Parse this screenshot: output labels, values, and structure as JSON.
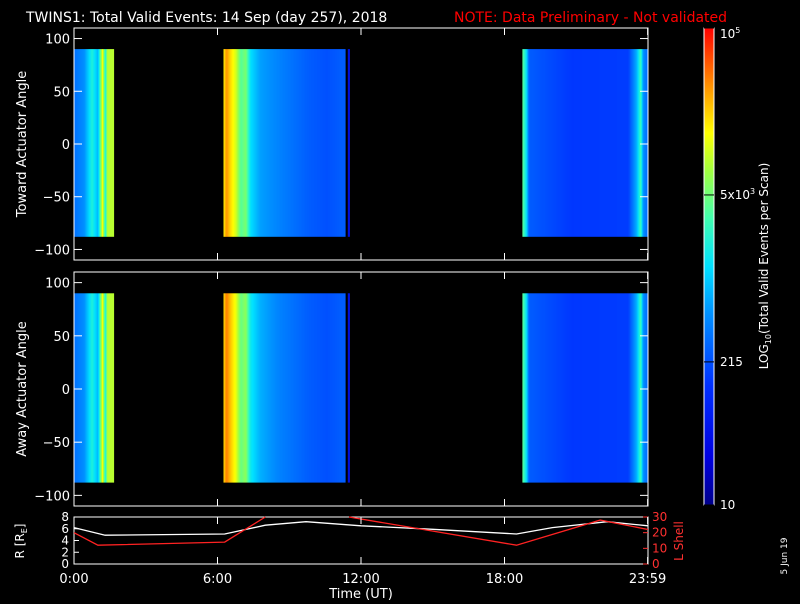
{
  "header": {
    "title": "TWINS1: Total Valid Events: 14 Sep (day 257), 2018",
    "note": "NOTE: Data Preliminary - Not validated",
    "note_color": "#ff0000"
  },
  "side_stamp": "5 Jun 19",
  "chart_data": [
    {
      "type": "heatmap",
      "ylabel": "Toward Actuator Angle",
      "ylim": [
        -110,
        110
      ],
      "yticks": [
        "100",
        "50",
        "0",
        "−50",
        "−100"
      ],
      "xlim_hours": [
        0,
        24
      ],
      "angle_range": [
        -88,
        90
      ],
      "data_blocks": [
        {
          "start": "0:00",
          "end": "1:40",
          "profile": [
            [
              0,
              0.35
            ],
            [
              0.25,
              0.4
            ],
            [
              0.45,
              0.55
            ],
            [
              0.6,
              0.45
            ],
            [
              0.72,
              0.78
            ],
            [
              0.79,
              0.55
            ],
            [
              0.85,
              0.72
            ],
            [
              1.0,
              0.72
            ]
          ]
        },
        {
          "start": "6:15",
          "end": "11:20",
          "profile": [
            [
              0,
              0.8
            ],
            [
              0.02,
              0.88
            ],
            [
              0.05,
              0.82
            ],
            [
              0.1,
              0.74
            ],
            [
              0.14,
              0.62
            ],
            [
              0.18,
              0.66
            ],
            [
              0.22,
              0.5
            ],
            [
              0.3,
              0.42
            ],
            [
              0.45,
              0.38
            ],
            [
              0.7,
              0.32
            ],
            [
              0.85,
              0.3
            ],
            [
              0.97,
              0.32
            ],
            [
              1.0,
              0.32
            ]
          ]
        },
        {
          "start": "11:27",
          "end": "11:33",
          "profile": [
            [
              0,
              0.15
            ],
            [
              1.0,
              0.15
            ]
          ]
        },
        {
          "start": "18:45",
          "end": "23:59",
          "profile": [
            [
              0,
              0.62
            ],
            [
              0.03,
              0.5
            ],
            [
              0.05,
              0.32
            ],
            [
              0.4,
              0.26
            ],
            [
              0.85,
              0.27
            ],
            [
              0.92,
              0.45
            ],
            [
              0.95,
              0.6
            ],
            [
              0.97,
              0.4
            ],
            [
              1.0,
              0.35
            ]
          ]
        }
      ]
    },
    {
      "type": "heatmap",
      "ylabel": "Away Actuator Angle",
      "ylim": [
        -110,
        110
      ],
      "yticks": [
        "100",
        "50",
        "0",
        "−50",
        "−100"
      ],
      "xlim_hours": [
        0,
        24
      ],
      "angle_range": [
        -88,
        90
      ],
      "data_blocks": [
        {
          "start": "0:00",
          "end": "1:40",
          "profile": [
            [
              0,
              0.35
            ],
            [
              0.25,
              0.4
            ],
            [
              0.45,
              0.55
            ],
            [
              0.6,
              0.45
            ],
            [
              0.72,
              0.78
            ],
            [
              0.79,
              0.55
            ],
            [
              0.85,
              0.72
            ],
            [
              1.0,
              0.72
            ]
          ]
        },
        {
          "start": "6:15",
          "end": "11:20",
          "profile": [
            [
              0,
              0.82
            ],
            [
              0.02,
              0.9
            ],
            [
              0.05,
              0.84
            ],
            [
              0.1,
              0.76
            ],
            [
              0.14,
              0.64
            ],
            [
              0.18,
              0.68
            ],
            [
              0.22,
              0.52
            ],
            [
              0.3,
              0.44
            ],
            [
              0.45,
              0.38
            ],
            [
              0.7,
              0.32
            ],
            [
              0.85,
              0.3
            ],
            [
              0.97,
              0.32
            ],
            [
              1.0,
              0.32
            ]
          ]
        },
        {
          "start": "11:27",
          "end": "11:33",
          "profile": [
            [
              0,
              0.15
            ],
            [
              1.0,
              0.15
            ]
          ]
        },
        {
          "start": "18:45",
          "end": "23:59",
          "profile": [
            [
              0,
              0.62
            ],
            [
              0.03,
              0.5
            ],
            [
              0.05,
              0.32
            ],
            [
              0.4,
              0.26
            ],
            [
              0.85,
              0.27
            ],
            [
              0.92,
              0.45
            ],
            [
              0.95,
              0.6
            ],
            [
              0.97,
              0.4
            ],
            [
              1.0,
              0.35
            ]
          ]
        }
      ]
    },
    {
      "type": "line",
      "xlabel": "Time (UT)",
      "ylabel": "R [R",
      "ylabel_sub": "E",
      "ylabel_close": "]",
      "ylim": [
        0,
        8
      ],
      "yticks": [
        "8",
        "6",
        "4",
        "2",
        "0"
      ],
      "y2label": "L Shell",
      "y2lim": [
        0,
        30
      ],
      "y2ticks": [
        "30",
        "20",
        "10",
        "0"
      ],
      "xticks": [
        "0:00",
        "6:00",
        "12:00",
        "18:00",
        "23:59"
      ],
      "series": [
        {
          "axis": "R",
          "color": "#ffffff",
          "points": [
            [
              0,
              6.2
            ],
            [
              1.3,
              4.9
            ],
            [
              6.3,
              5.1
            ],
            [
              8.0,
              6.6
            ],
            [
              9.7,
              7.2
            ],
            [
              12.0,
              6.5
            ],
            [
              15.0,
              5.9
            ],
            [
              18.5,
              5.1
            ],
            [
              20.0,
              6.2
            ],
            [
              22.3,
              7.2
            ],
            [
              24.0,
              6.5
            ]
          ]
        },
        {
          "axis": "L",
          "color": "#ff2222",
          "points": [
            [
              0,
              20
            ],
            [
              1.0,
              12
            ],
            [
              6.3,
              14
            ],
            [
              8.0,
              30
            ]
          ]
        },
        {
          "axis": "L",
          "color": "#ff2222",
          "points": [
            [
              11.5,
              30
            ],
            [
              18.5,
              12
            ],
            [
              22.0,
              28
            ],
            [
              24.0,
              22
            ]
          ]
        }
      ]
    }
  ],
  "colorbar": {
    "label": "LOG",
    "label_sub": "10",
    "label_rest": "(Total Valid Events per Scan)",
    "ticks": [
      {
        "value": "10",
        "frac": 0.0
      },
      {
        "value": "215",
        "frac": 0.3
      },
      {
        "value": "5x10",
        "sup": "3",
        "frac": 0.65
      },
      {
        "value": "10",
        "sup": "5",
        "frac": 1.0
      }
    ]
  }
}
